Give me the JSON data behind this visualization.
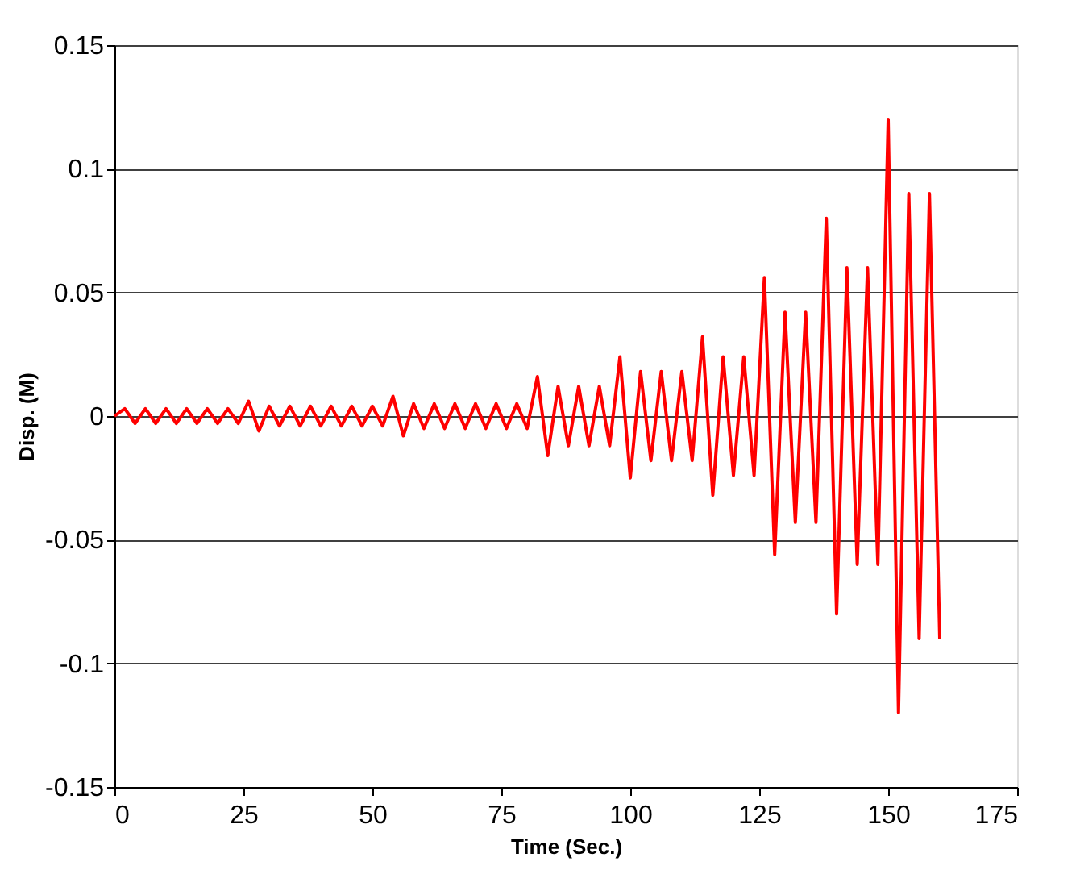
{
  "chart_data": {
    "type": "line",
    "xlabel": "Time (Sec.)",
    "ylabel": "Disp. (M)",
    "xlim": [
      0,
      175
    ],
    "xticks": [
      0,
      25,
      50,
      75,
      100,
      125,
      150,
      175
    ],
    "ylim": [
      -0.15,
      0.15
    ],
    "yticks": [
      -0.15,
      -0.1,
      -0.05,
      0,
      0.05,
      0.1,
      0.15
    ],
    "grid": "y",
    "marker": "none",
    "line_style": "solid",
    "x": [
      0,
      2,
      4,
      6,
      8,
      10,
      12,
      14,
      16,
      18,
      20,
      22,
      24,
      26,
      28,
      30,
      32,
      34,
      36,
      38,
      40,
      42,
      44,
      46,
      48,
      50,
      52,
      54,
      56,
      58,
      60,
      62,
      64,
      66,
      68,
      70,
      72,
      74,
      76,
      78,
      80,
      82,
      84,
      86,
      88,
      90,
      92,
      94,
      96,
      98,
      100,
      102,
      104,
      106,
      108,
      110,
      112,
      114,
      116,
      118,
      120,
      122,
      124,
      126,
      128,
      130,
      132,
      134,
      136,
      138,
      140,
      142,
      144,
      146,
      148,
      150,
      152,
      154,
      156,
      158,
      160
    ],
    "series": [
      {
        "color": "#ff0000",
        "values": [
          0,
          0.003,
          -0.003,
          0.003,
          -0.003,
          0.003,
          -0.003,
          0.003,
          -0.003,
          0.003,
          -0.003,
          0.003,
          -0.003,
          0.006,
          -0.006,
          0.004,
          -0.004,
          0.004,
          -0.004,
          0.004,
          -0.004,
          0.004,
          -0.004,
          0.004,
          -0.004,
          0.004,
          -0.004,
          0.008,
          -0.008,
          0.005,
          -0.005,
          0.005,
          -0.005,
          0.005,
          -0.005,
          0.005,
          -0.005,
          0.005,
          -0.005,
          0.005,
          -0.005,
          0.016,
          -0.016,
          0.012,
          -0.012,
          0.012,
          -0.012,
          0.012,
          -0.012,
          0.024,
          -0.025,
          0.018,
          -0.018,
          0.018,
          -0.018,
          0.018,
          -0.018,
          0.032,
          -0.032,
          0.024,
          -0.024,
          0.024,
          -0.024,
          0.056,
          -0.056,
          0.042,
          -0.043,
          0.042,
          -0.043,
          0.08,
          -0.08,
          0.06,
          -0.06,
          0.06,
          -0.06,
          0.12,
          -0.12,
          0.09,
          -0.09,
          0.09,
          -0.09
        ]
      }
    ]
  }
}
